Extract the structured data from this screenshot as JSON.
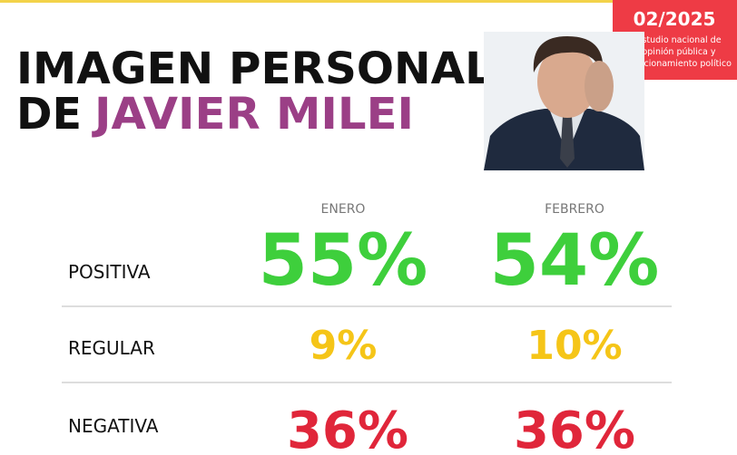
{
  "header": {
    "title_line1": "IMAGEN PERSONAL",
    "title_line2_prefix": "DE",
    "title_line2_name": "JAVIER MILEI"
  },
  "badge": {
    "date": "02/2025",
    "lines": [
      "Estudio nacional de",
      "opinión pública y",
      "posicionamiento político"
    ]
  },
  "table": {
    "columns": [
      "ENERO",
      "FEBRERO"
    ],
    "rows": [
      {
        "label": "POSITIVA",
        "values": [
          "55%",
          "54%"
        ]
      },
      {
        "label": "REGULAR",
        "values": [
          "9%",
          "10%"
        ]
      },
      {
        "label": "NEGATIVA",
        "values": [
          "36%",
          "36%"
        ]
      }
    ]
  }
}
